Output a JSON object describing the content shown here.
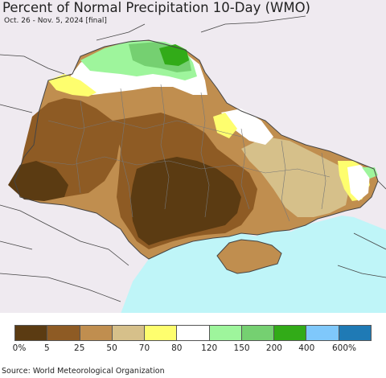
{
  "header": {
    "title": "Percent of Normal Precipitation 10-Day (WMO)",
    "subtitle": "Oct. 26 - Nov. 5, 2024 [final]"
  },
  "colors": {
    "land_outside": "#efeaf0",
    "sea": "#bff5f8",
    "border": "#444444",
    "oblast_border": "#777777",
    "pct_0_5": "#5b3b12",
    "pct_5_25": "#8e5b24",
    "pct_25_50": "#c08e4f",
    "pct_50_70": "#d6c08a",
    "pct_70_80": "#fefe6e",
    "pct_80_120": "#ffffff",
    "pct_120_150": "#9ef59c",
    "pct_150_200": "#75d071",
    "pct_200_400": "#32ab18",
    "pct_400_600": "#7fc8fb",
    "pct_600_plus": "#1f7ab5"
  },
  "legend": {
    "swatches": [
      "#5b3b12",
      "#8e5b24",
      "#c08e4f",
      "#d6c08a",
      "#fefe6e",
      "#ffffff",
      "#9ef59c",
      "#75d071",
      "#32ab18",
      "#7fc8fb",
      "#1f7ab5"
    ],
    "labels": [
      "0%",
      "5",
      "25",
      "50",
      "70",
      "80",
      "120",
      "150",
      "200",
      "400",
      "600%"
    ]
  },
  "footer": {
    "source": "Source: World Meteorological Organization"
  }
}
